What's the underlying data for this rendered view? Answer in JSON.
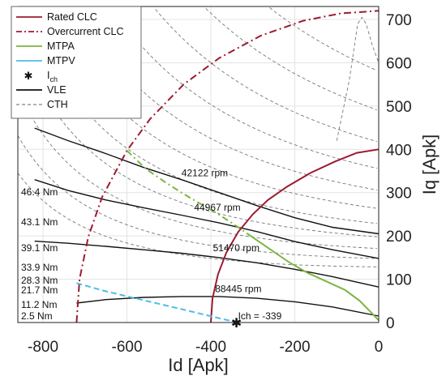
{
  "chart_data": {
    "type": "line",
    "title": "",
    "xlabel": "Id [Apk]",
    "ylabel": "Iq [Apk]",
    "xlim": [
      -860,
      0
    ],
    "ylim": [
      0,
      730
    ],
    "xticks": [
      -800,
      -600,
      -400,
      -200,
      0
    ],
    "yticks": [
      0,
      100,
      200,
      300,
      400,
      500,
      600,
      700
    ],
    "grid": true,
    "legend_position": "top-left",
    "legend": [
      {
        "label": "Rated CLC",
        "style": "solid",
        "color": "#9b1b30"
      },
      {
        "label": "Overcurrent CLC",
        "style": "dashdot",
        "color": "#9b1b30"
      },
      {
        "label": "MTPA",
        "style": "solid",
        "color": "#7ab640"
      },
      {
        "label": "MTPV",
        "style": "solid",
        "color": "#4bbde8"
      },
      {
        "label": "I",
        "sub": "ch",
        "style": "marker",
        "color": "#111111"
      },
      {
        "label": "VLE",
        "style": "solid",
        "color": "#111111"
      },
      {
        "label": "CTH",
        "style": "dashed",
        "color": "#666666"
      }
    ],
    "series": [
      {
        "name": "Rated CLC",
        "style": "solid",
        "color": "#9b1b30",
        "points": [
          [
            -400,
            0
          ],
          [
            -396,
            56
          ],
          [
            -383,
            111
          ],
          [
            -363,
            162
          ],
          [
            -335,
            209
          ],
          [
            -300,
            250
          ],
          [
            -264,
            283
          ],
          [
            -218,
            314
          ],
          [
            -162,
            346
          ],
          [
            -104,
            372
          ],
          [
            -52,
            392
          ],
          [
            0,
            400
          ]
        ]
      },
      {
        "name": "Overcurrent CLC",
        "style": "dashdot",
        "color": "#9b1b30",
        "points": [
          [
            -720,
            0
          ],
          [
            -713,
            100
          ],
          [
            -692,
            198
          ],
          [
            -659,
            290
          ],
          [
            -600,
            397
          ],
          [
            -545,
            470
          ],
          [
            -465,
            550
          ],
          [
            -380,
            611
          ],
          [
            -280,
            663
          ],
          [
            -180,
            697
          ],
          [
            -90,
            714
          ],
          [
            0,
            720
          ]
        ]
      },
      {
        "name": "MTPA",
        "style": "mixed",
        "color": "#7ab640",
        "points": [
          [
            -600,
            397
          ],
          [
            -555,
            355
          ],
          [
            -510,
            325
          ],
          [
            -470,
            300
          ],
          [
            -430,
            277
          ],
          [
            -390,
            255
          ],
          [
            -350,
            230
          ],
          [
            -305,
            200
          ],
          [
            -260,
            170
          ],
          [
            -215,
            140
          ],
          [
            -170,
            115
          ],
          [
            -125,
            95
          ],
          [
            -80,
            75
          ],
          [
            -45,
            50
          ],
          [
            -20,
            25
          ],
          [
            0,
            5
          ]
        ]
      },
      {
        "name": "MTPV",
        "style": "dashed",
        "color": "#4bbde8",
        "points": [
          [
            -720,
            91
          ],
          [
            -650,
            72
          ],
          [
            -580,
            56
          ],
          [
            -510,
            40
          ],
          [
            -440,
            24
          ],
          [
            -380,
            10
          ],
          [
            -345,
            2
          ],
          [
            -339,
            0
          ]
        ]
      }
    ],
    "vle_curves": [
      {
        "label": "42122 rpm",
        "label_at": [
          -470,
          338
        ],
        "points": [
          [
            -820,
            449
          ],
          [
            -740,
            420
          ],
          [
            -650,
            390
          ],
          [
            -560,
            358
          ],
          [
            -470,
            330
          ],
          [
            -380,
            300
          ],
          [
            -290,
            270
          ],
          [
            -200,
            242
          ],
          [
            -110,
            220
          ],
          [
            0,
            205
          ]
        ]
      },
      {
        "label": "44967 rpm",
        "label_at": [
          -440,
          258
        ],
        "points": [
          [
            -820,
            330
          ],
          [
            -740,
            305
          ],
          [
            -650,
            283
          ],
          [
            -560,
            265
          ],
          [
            -470,
            248
          ],
          [
            -380,
            230
          ],
          [
            -290,
            210
          ],
          [
            -200,
            187
          ],
          [
            -110,
            168
          ],
          [
            0,
            148
          ]
        ]
      },
      {
        "label": "51470 rpm",
        "label_at": [
          -395,
          165
        ],
        "points": [
          [
            -820,
            188
          ],
          [
            -740,
            183
          ],
          [
            -650,
            176
          ],
          [
            -560,
            168
          ],
          [
            -470,
            160
          ],
          [
            -380,
            150
          ],
          [
            -290,
            138
          ],
          [
            -200,
            123
          ],
          [
            -110,
            106
          ],
          [
            0,
            82
          ]
        ]
      },
      {
        "label": "88445 rpm",
        "label_at": [
          -390,
          70
        ],
        "points": [
          [
            -720,
            45
          ],
          [
            -650,
            53
          ],
          [
            -560,
            58
          ],
          [
            -470,
            60
          ],
          [
            -380,
            60
          ],
          [
            -290,
            56
          ],
          [
            -200,
            48
          ],
          [
            -110,
            36
          ],
          [
            0,
            15
          ]
        ]
      }
    ],
    "torque_labels": [
      "46.4 Nm",
      "43.1 Nm",
      "39.1 Nm",
      "33.9 Nm",
      "28.3 Nm",
      "21.7 Nm",
      "11.2 Nm",
      "2.5 Nm"
    ],
    "ich": {
      "label": "Ich = -339",
      "point": [
        -339,
        0
      ]
    }
  }
}
